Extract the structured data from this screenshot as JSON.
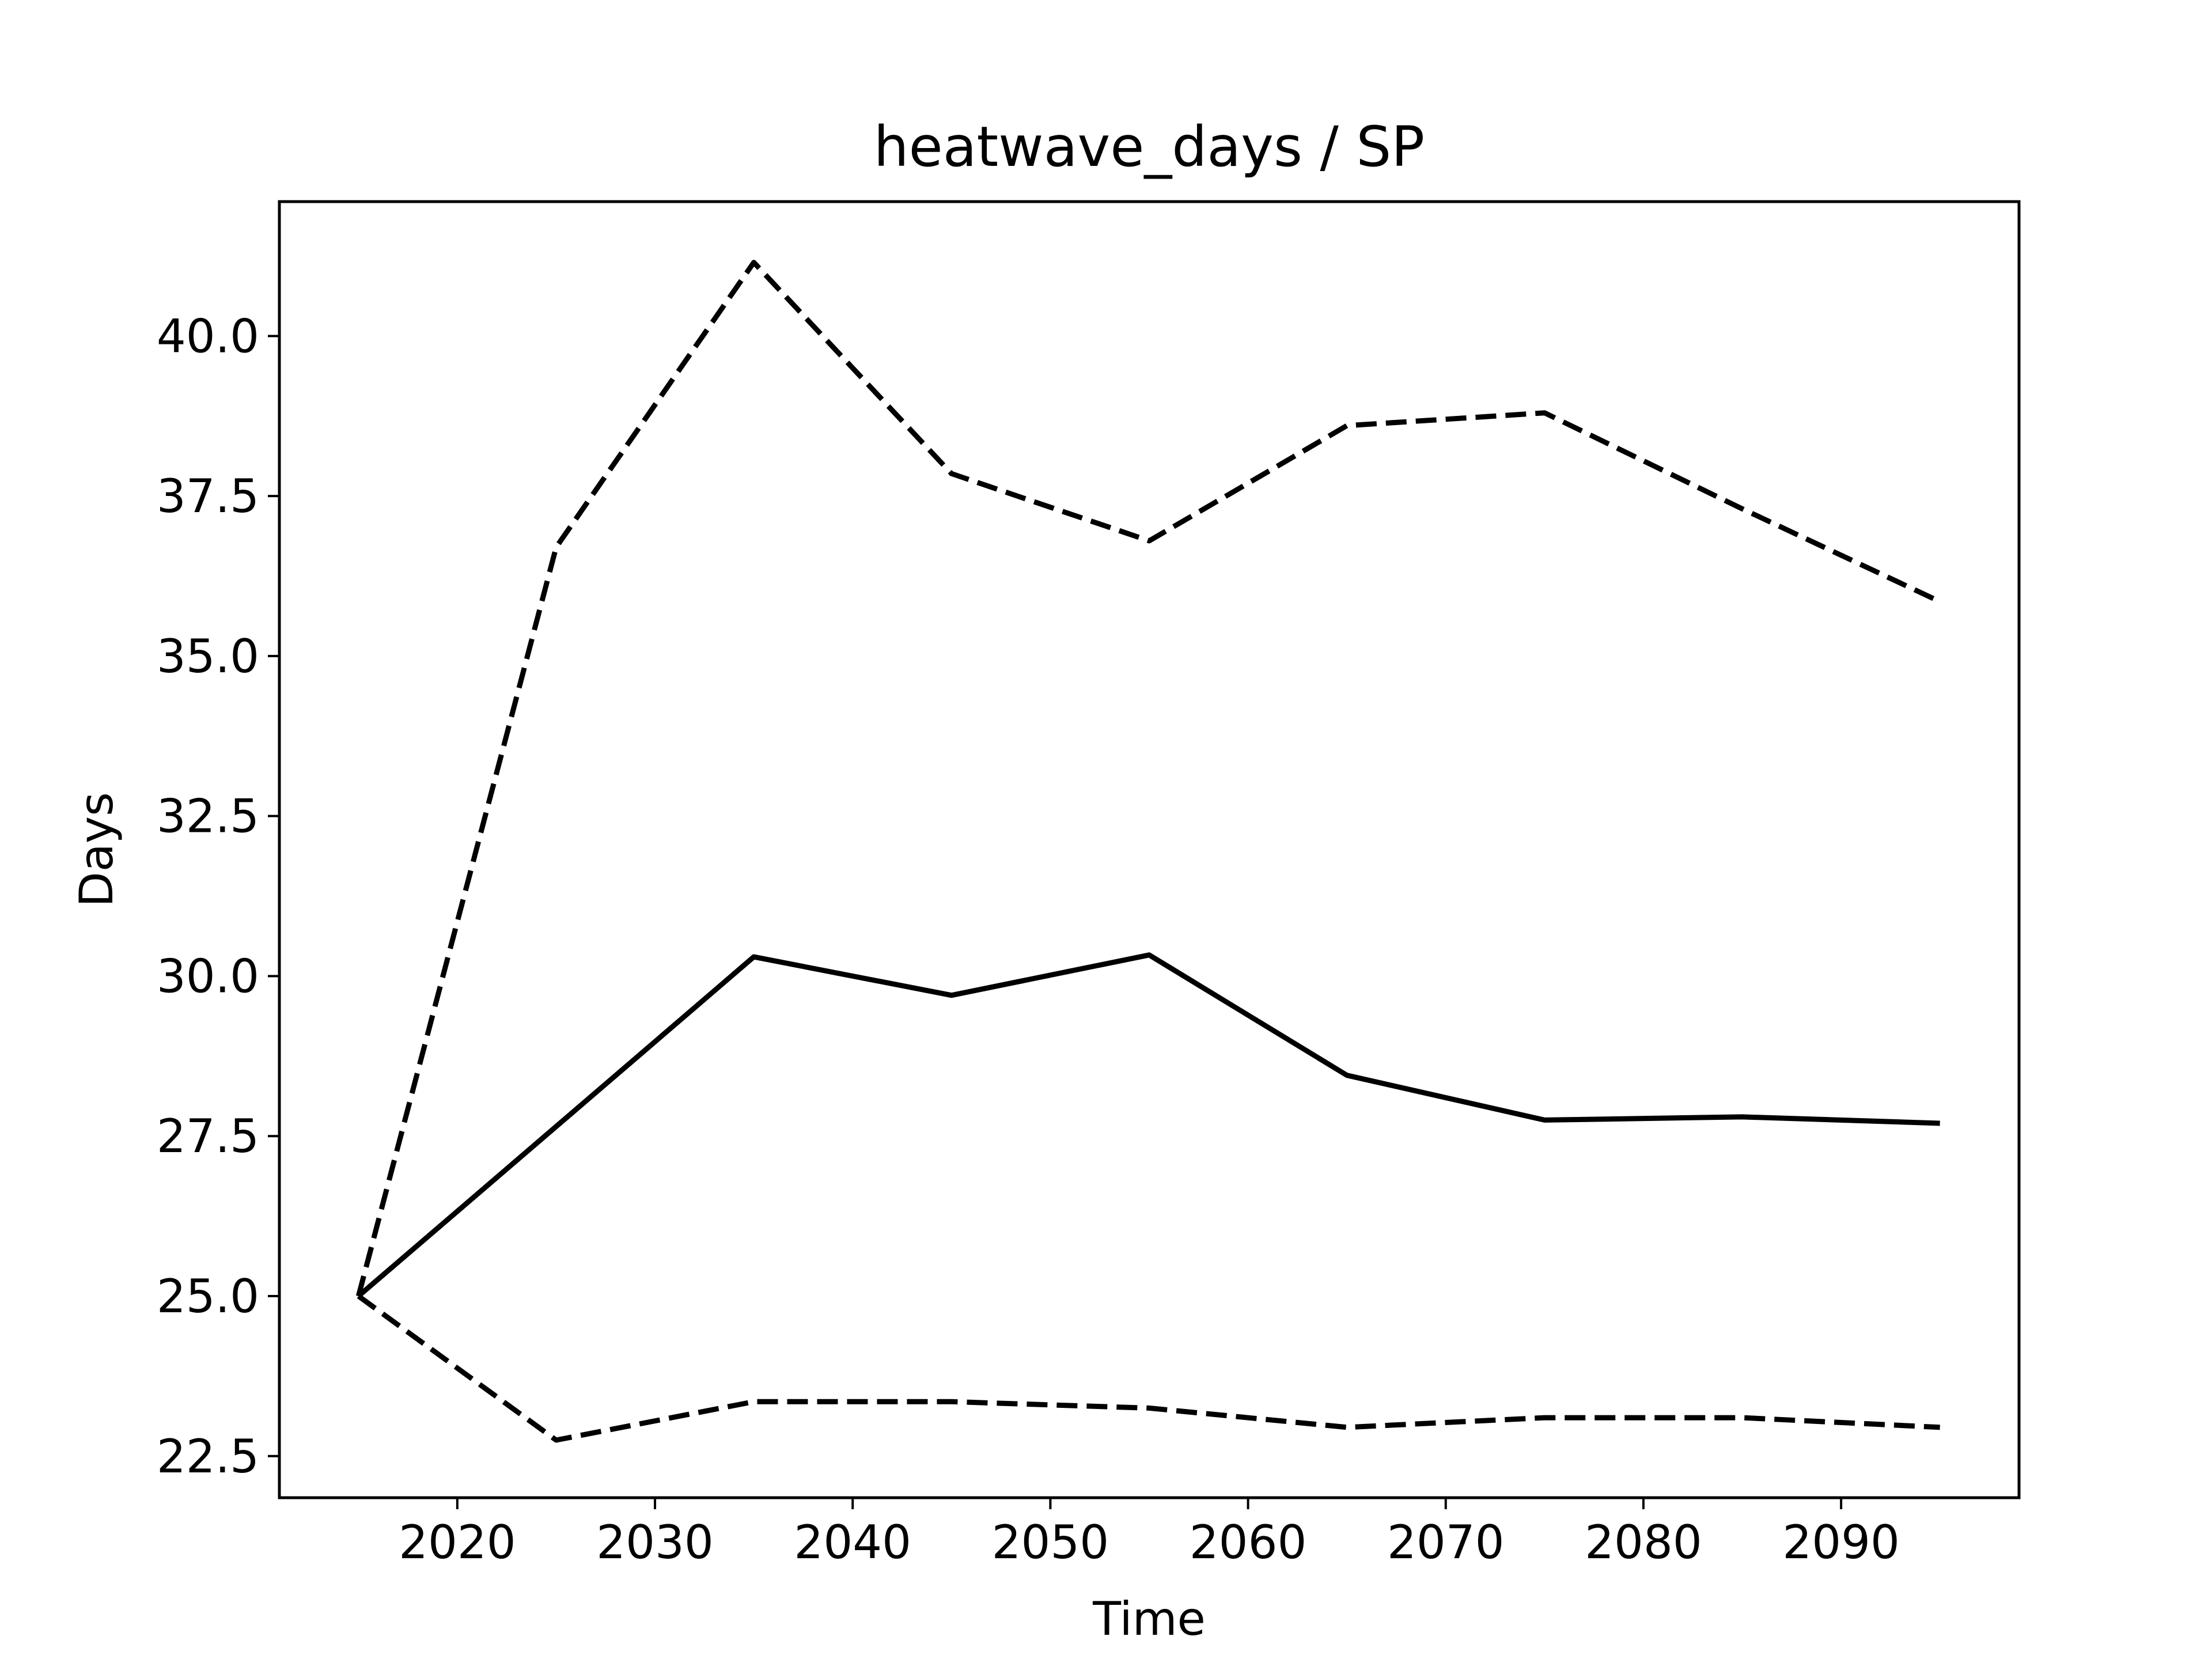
{
  "chart_data": {
    "type": "line",
    "title": "heatwave_days / SP",
    "xlabel": "Time",
    "ylabel": "Days",
    "xlim": [
      2011,
      2099
    ],
    "ylim": [
      21.85,
      42.1
    ],
    "xticks": [
      2020,
      2030,
      2040,
      2050,
      2060,
      2070,
      2080,
      2090
    ],
    "yticks": [
      22.5,
      25.0,
      27.5,
      30.0,
      32.5,
      35.0,
      37.5,
      40.0
    ],
    "ytick_labels": [
      "22.5",
      "25.0",
      "27.5",
      "30.0",
      "32.5",
      "35.0",
      "37.5",
      "40.0"
    ],
    "grid": false,
    "x": [
      2015,
      2025,
      2035,
      2045,
      2055,
      2065,
      2075,
      2085,
      2095
    ],
    "series": [
      {
        "style": "solid",
        "color": "#000000",
        "values": [
          25.0,
          27.65,
          30.3,
          29.7,
          30.33,
          28.45,
          27.75,
          27.8,
          27.7
        ]
      },
      {
        "style": "dashed",
        "color": "#000000",
        "values": [
          25.0,
          36.7,
          41.15,
          37.85,
          36.8,
          38.6,
          38.8,
          37.3,
          35.85
        ]
      },
      {
        "style": "dashed",
        "color": "#000000",
        "values": [
          25.0,
          22.75,
          23.35,
          23.35,
          23.25,
          22.95,
          23.1,
          23.1,
          22.95
        ]
      }
    ]
  }
}
